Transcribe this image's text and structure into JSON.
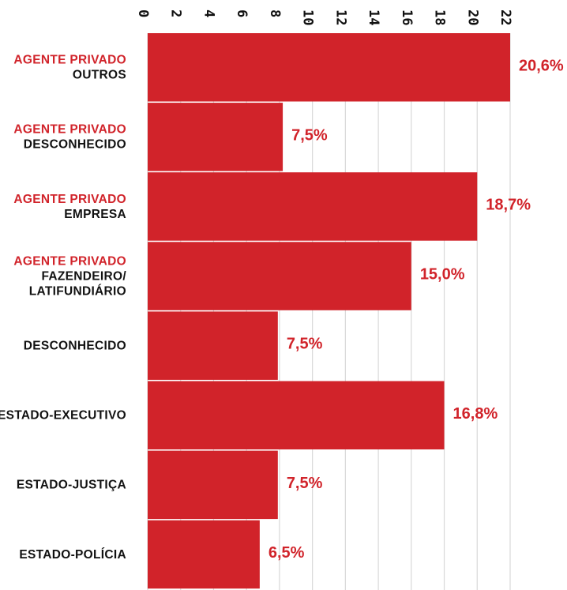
{
  "colors": {
    "bar": "#d1232a",
    "accent_text": "#d1232a",
    "text": "#111111",
    "grid": "#d9d9d9"
  },
  "chart_data": {
    "type": "bar",
    "orientation": "horizontal",
    "categories": [
      [
        "AGENTE PRIVADO",
        "OUTROS"
      ],
      [
        "AGENTE PRIVADO",
        "DESCONHECIDO"
      ],
      [
        "AGENTE PRIVADO",
        "EMPRESA"
      ],
      [
        "AGENTE PRIVADO",
        "FAZENDEIRO/",
        "LATIFUNDIÁRIO"
      ],
      [
        "DESCONHECIDO"
      ],
      [
        "ESTADO-EXECUTIVO"
      ],
      [
        "ESTADO-JUSTIÇA"
      ],
      [
        "ESTADO-POLÍCIA"
      ]
    ],
    "values": [
      20.6,
      7.5,
      18.7,
      15.0,
      7.5,
      16.8,
      7.5,
      6.5
    ],
    "bar_extents": [
      22.0,
      8.2,
      20.0,
      16.0,
      7.9,
      18.0,
      7.9,
      6.8
    ],
    "value_labels": [
      "20,6%",
      "7,5%",
      "18,7%",
      "15,0%",
      "7,5%",
      "16,8%",
      "7,5%",
      "6,5%"
    ],
    "xticks": [
      0,
      2,
      4,
      6,
      8,
      10,
      12,
      14,
      16,
      18,
      20,
      22
    ],
    "xlim": [
      0,
      22
    ],
    "xaxis_position": "top",
    "tick_label_rotation": "vertical",
    "grid": true,
    "legend": "none"
  }
}
